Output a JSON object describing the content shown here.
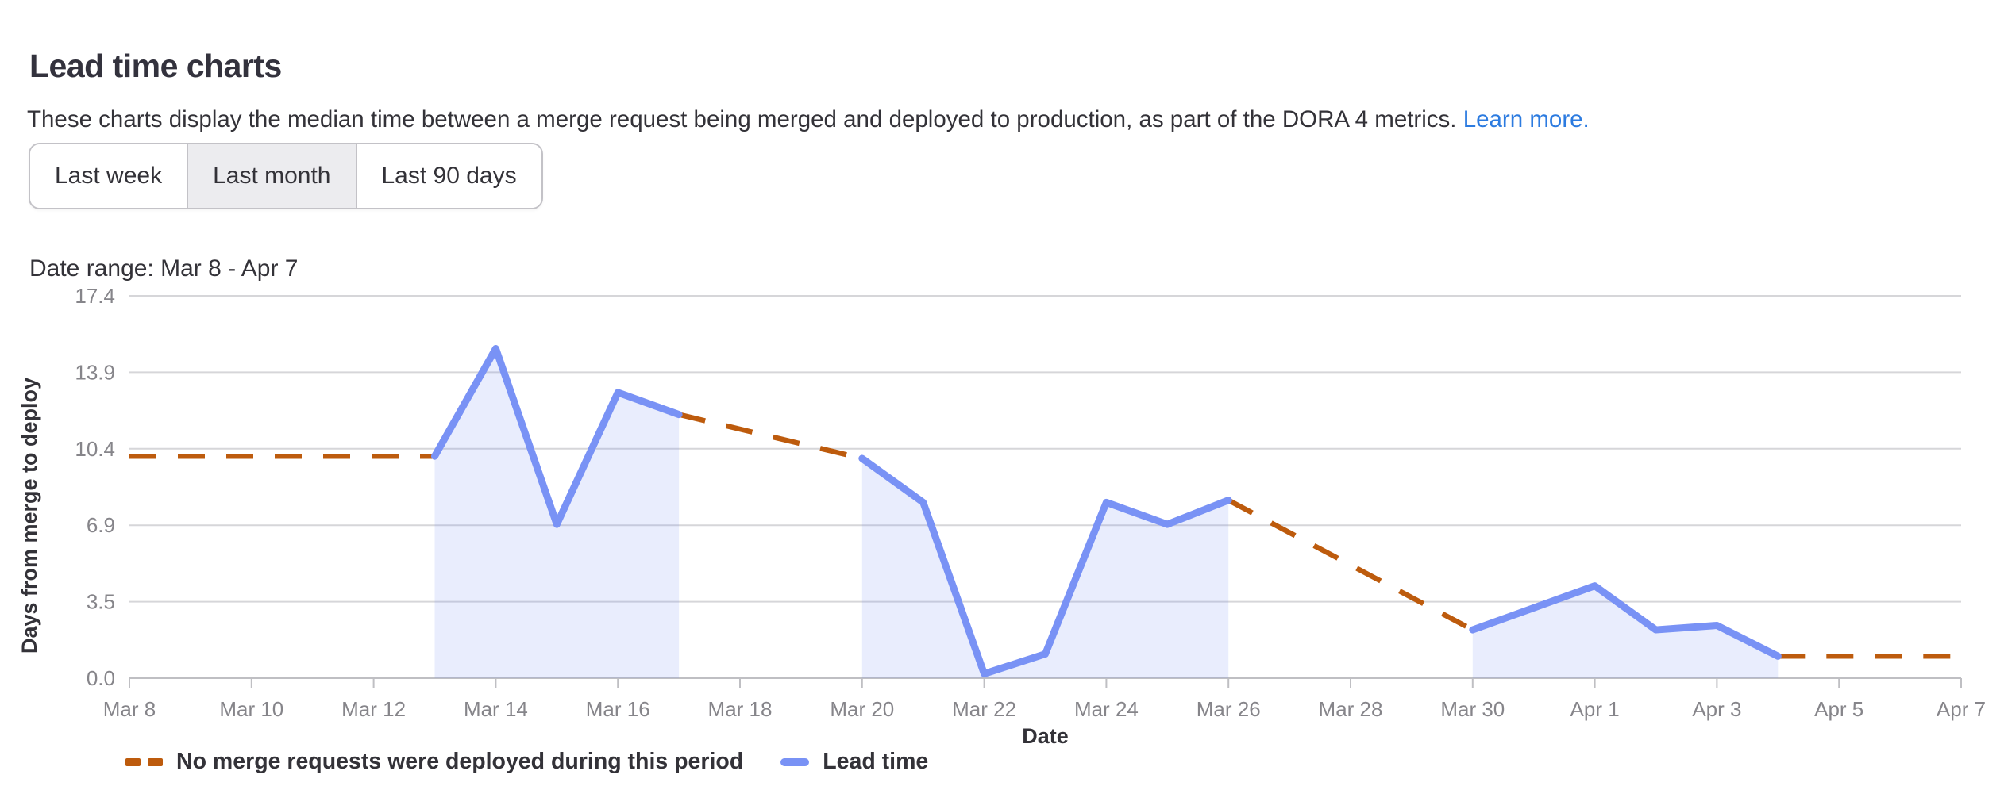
{
  "page": {
    "title": "Lead time charts",
    "description": "These charts display the median time between a merge request being merged and deployed to production, as part of the DORA 4 metrics.",
    "learn_more_label": "Learn more.",
    "date_range_text": "Date range: Mar 8 - Apr 7"
  },
  "filters": {
    "options": [
      {
        "label": "Last week",
        "selected": false
      },
      {
        "label": "Last month",
        "selected": true
      },
      {
        "label": "Last 90 days",
        "selected": false
      }
    ]
  },
  "colors": {
    "line": "#7992f5",
    "area": "rgba(121,146,245,0.16)",
    "dashed": "#bd5b0d",
    "grid": "#d6d6d9",
    "axis": "#bfbfc3",
    "tick_label": "#86858a",
    "axis_title": "#333238",
    "link": "#2c7be0"
  },
  "chart_data": {
    "type": "line",
    "title": "",
    "xlabel": "Date",
    "ylabel": "Days from merge to deploy",
    "ylim": [
      0,
      17.4
    ],
    "grid": true,
    "legend_position": "bottom-left",
    "y_ticks": [
      "0.0",
      "3.5",
      "6.9",
      "10.4",
      "13.9",
      "17.4"
    ],
    "x_tick_every": 2,
    "categories": [
      "Mar 8",
      "Mar 9",
      "Mar 10",
      "Mar 11",
      "Mar 12",
      "Mar 13",
      "Mar 14",
      "Mar 15",
      "Mar 16",
      "Mar 17",
      "Mar 18",
      "Mar 19",
      "Mar 20",
      "Mar 21",
      "Mar 22",
      "Mar 23",
      "Mar 24",
      "Mar 25",
      "Mar 26",
      "Mar 27",
      "Mar 28",
      "Mar 29",
      "Mar 30",
      "Mar 31",
      "Apr 1",
      "Apr 2",
      "Apr 3",
      "Apr 4",
      "Apr 5",
      "Apr 6",
      "Apr 7"
    ],
    "series": [
      {
        "name": "Lead time",
        "type": "line",
        "style": "solid",
        "values": [
          null,
          null,
          null,
          null,
          null,
          10.1,
          15.0,
          7.0,
          13.0,
          12.0,
          null,
          null,
          10.0,
          8.0,
          0.2,
          1.1,
          8.0,
          7.0,
          8.1,
          null,
          null,
          null,
          2.2,
          3.2,
          4.2,
          2.2,
          2.4,
          1.0,
          null,
          null,
          null
        ]
      },
      {
        "name": "No merge requests were deployed during this period",
        "type": "line",
        "style": "dashed",
        "role": "gap-connector",
        "description": "Straight dashed segments spanning periods with no deployments: Mar 8-Mar 13 flat at 10.1, Mar 17 (12.0) to Mar 20 (10.0), Mar 26 (8.1) to Mar 30 (2.2), Apr 4-Apr 7 flat at 1.0"
      }
    ]
  }
}
